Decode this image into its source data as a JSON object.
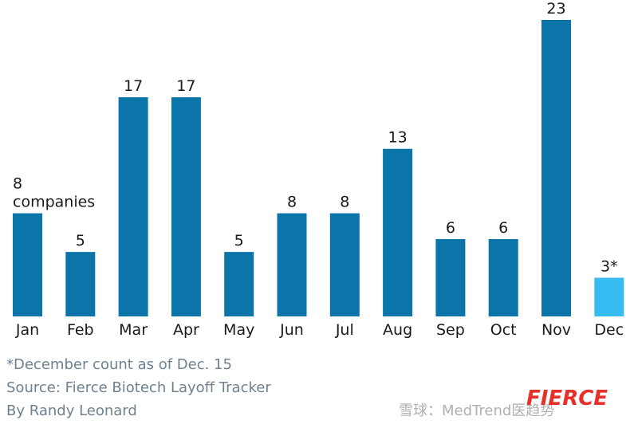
{
  "chart_data": {
    "type": "bar",
    "categories": [
      "Jan",
      "Feb",
      "Mar",
      "Apr",
      "May",
      "Jun",
      "Jul",
      "Aug",
      "Sep",
      "Oct",
      "Nov",
      "Dec"
    ],
    "values": [
      8,
      5,
      17,
      17,
      5,
      8,
      8,
      13,
      6,
      6,
      23,
      3
    ],
    "value_labels": [
      "8 companies",
      "5",
      "17",
      "17",
      "5",
      "8",
      "8",
      "13",
      "6",
      "6",
      "23",
      "3*"
    ],
    "colors": [
      "#0b74a8",
      "#0b74a8",
      "#0b74a8",
      "#0b74a8",
      "#0b74a8",
      "#0b74a8",
      "#0b74a8",
      "#0b74a8",
      "#0b74a8",
      "#0b74a8",
      "#0b74a8",
      "#35bdf2"
    ],
    "notes": [
      "*December count as of Dec. 15",
      "Source: Fierce Biotech Layoff Tracker",
      "By Randy Leonard"
    ],
    "watermark": "雪球：MedTrend医趋势",
    "logo": "FIERCE"
  }
}
